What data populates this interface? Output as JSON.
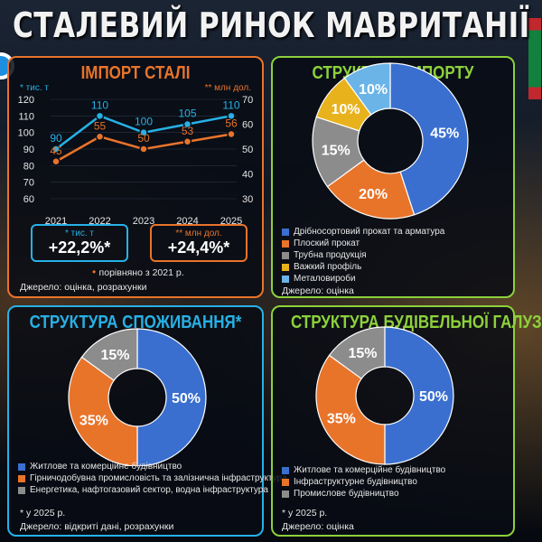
{
  "page_title": "СТАЛЕВИЙ РИНОК МАВРИТАНІЇ",
  "colors": {
    "orange": "#e8742a",
    "cyan": "#27b1e6",
    "green": "#8cd13b",
    "blue": "#3a6fcf",
    "gray": "#8c8c8c",
    "yellow": "#e8b21c",
    "lightblue": "#6ab4e8"
  },
  "chart_data": [
    {
      "type": "line",
      "title": "ІМПОРТ СТАЛІ",
      "x": [
        2021,
        2022,
        2023,
        2024,
        2025
      ],
      "left_axis_label": "* тис. т",
      "right_axis_label": "** млн дол.",
      "left_ylim": [
        60,
        120
      ],
      "right_ylim": [
        30,
        70
      ],
      "left_ticks": [
        60,
        70,
        80,
        90,
        100,
        110,
        120
      ],
      "right_ticks": [
        30,
        40,
        50,
        60,
        70
      ],
      "series": [
        {
          "name": "* тис. т",
          "axis": "left",
          "color": "#27b1e6",
          "values": [
            90,
            110,
            100,
            105,
            110
          ]
        },
        {
          "name": "** млн дол.",
          "axis": "right",
          "color": "#e8742a",
          "values": [
            45,
            55,
            50,
            53,
            56
          ]
        }
      ],
      "stats": [
        {
          "label": "* тис. т",
          "value": "+22,2%*"
        },
        {
          "label": "** млн дол.",
          "value": "+24,4%*"
        }
      ],
      "note": "порівняно з 2021 р.",
      "source": "Джерело: оцінка, розрахунки"
    },
    {
      "type": "pie",
      "title": "СТРУКТУРА ІМПОРТУ",
      "slices": [
        {
          "label": "Дрібносортовий прокат та арматура",
          "value": 45,
          "text": "45%",
          "color": "#3a6fcf"
        },
        {
          "label": "Плоский прокат",
          "value": 20,
          "text": "20%",
          "color": "#e8742a"
        },
        {
          "label": "Трубна продукція",
          "value": 15,
          "text": "15%",
          "color": "#8c8c8c"
        },
        {
          "label": "Важкий профіль",
          "value": 10,
          "text": "10%",
          "color": "#e8b21c"
        },
        {
          "label": "Металовироби",
          "value": 10,
          "text": "10%",
          "color": "#6ab4e8"
        }
      ],
      "source": "Джерело: оцінка"
    },
    {
      "type": "pie",
      "title": "СТРУКТУРА СПОЖИВАННЯ*",
      "slices": [
        {
          "label": "Житлове та комерційне будівництво",
          "value": 50,
          "text": "50%",
          "color": "#3a6fcf"
        },
        {
          "label": "Гірничодобувна промисловість та залізнична інфраструктура",
          "value": 35,
          "text": "35%",
          "color": "#e8742a"
        },
        {
          "label": "Енергетика, нафтогазовий сектор, водна інфраструктура",
          "value": 15,
          "text": "15%",
          "color": "#8c8c8c"
        }
      ],
      "note": "* у 2025 р.",
      "source": "Джерело: відкриті дані, розрахунки"
    },
    {
      "type": "pie",
      "title": "СТРУКТУРА БУДІВЕЛЬНОЇ ГАЛУЗІ*",
      "slices": [
        {
          "label": "Житлове та комерційне будівництво",
          "value": 50,
          "text": "50%",
          "color": "#3a6fcf"
        },
        {
          "label": "Інфраструктурне будівництво",
          "value": 35,
          "text": "35%",
          "color": "#e8742a"
        },
        {
          "label": "Промислове будівництво",
          "value": 15,
          "text": "15%",
          "color": "#8c8c8c"
        }
      ],
      "note": "* у 2025 р.",
      "source": "Джерело: оцінка"
    }
  ]
}
